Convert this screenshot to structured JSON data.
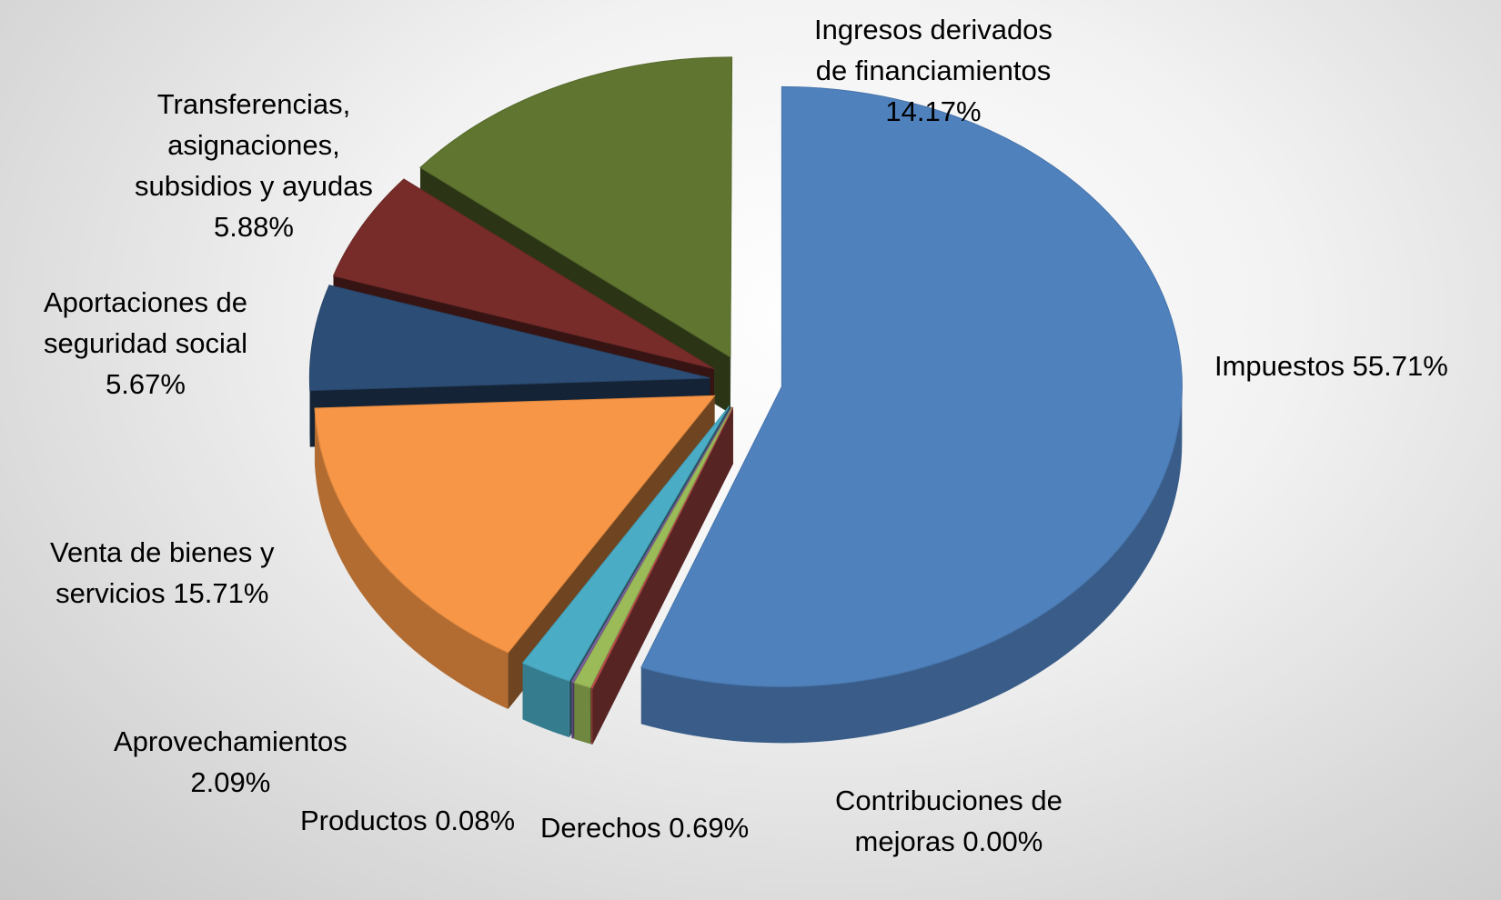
{
  "chart_data": {
    "type": "pie",
    "title": "",
    "slices": [
      {
        "category": "Impuestos",
        "value": 55.71,
        "label_lines": [
          "Impuestos 55.71%"
        ],
        "color": "#4F81BD"
      },
      {
        "category": "Contribuciones de mejoras",
        "value": 0.0,
        "label_lines": [
          "Contribuciones de",
          "mejoras 0.00%"
        ],
        "color": "#C0504D"
      },
      {
        "category": "Derechos",
        "value": 0.69,
        "label_lines": [
          "Derechos 0.69%"
        ],
        "color": "#9BBB59"
      },
      {
        "category": "Productos",
        "value": 0.08,
        "label_lines": [
          "Productos 0.08%"
        ],
        "color": "#8064A2"
      },
      {
        "category": "Aprovechamientos",
        "value": 2.09,
        "label_lines": [
          "Aprovechamientos",
          "2.09%"
        ],
        "color": "#4BACC6"
      },
      {
        "category": "Venta de bienes y servicios",
        "value": 15.71,
        "label_lines": [
          "Venta de bienes y",
          "servicios 15.71%"
        ],
        "color": "#F79646"
      },
      {
        "category": "Aportaciones de seguridad social",
        "value": 5.67,
        "label_lines": [
          "Aportaciones de",
          "seguridad social",
          "5.67%"
        ],
        "color": "#2C4D75"
      },
      {
        "category": "Transferencias, asignaciones, subsidios y ayudas",
        "value": 5.88,
        "label_lines": [
          "Transferencias,",
          "asignaciones,",
          "subsidios y ayudas",
          "5.88%"
        ],
        "color": "#772C2A"
      },
      {
        "category": "Ingresos derivados de financiamientos",
        "value": 14.17,
        "label_lines": [
          "Ingresos derivados",
          "de financiamientos",
          "14.17%"
        ],
        "color": "#5F7530"
      }
    ],
    "legend": "none",
    "data_labels": "outside"
  }
}
